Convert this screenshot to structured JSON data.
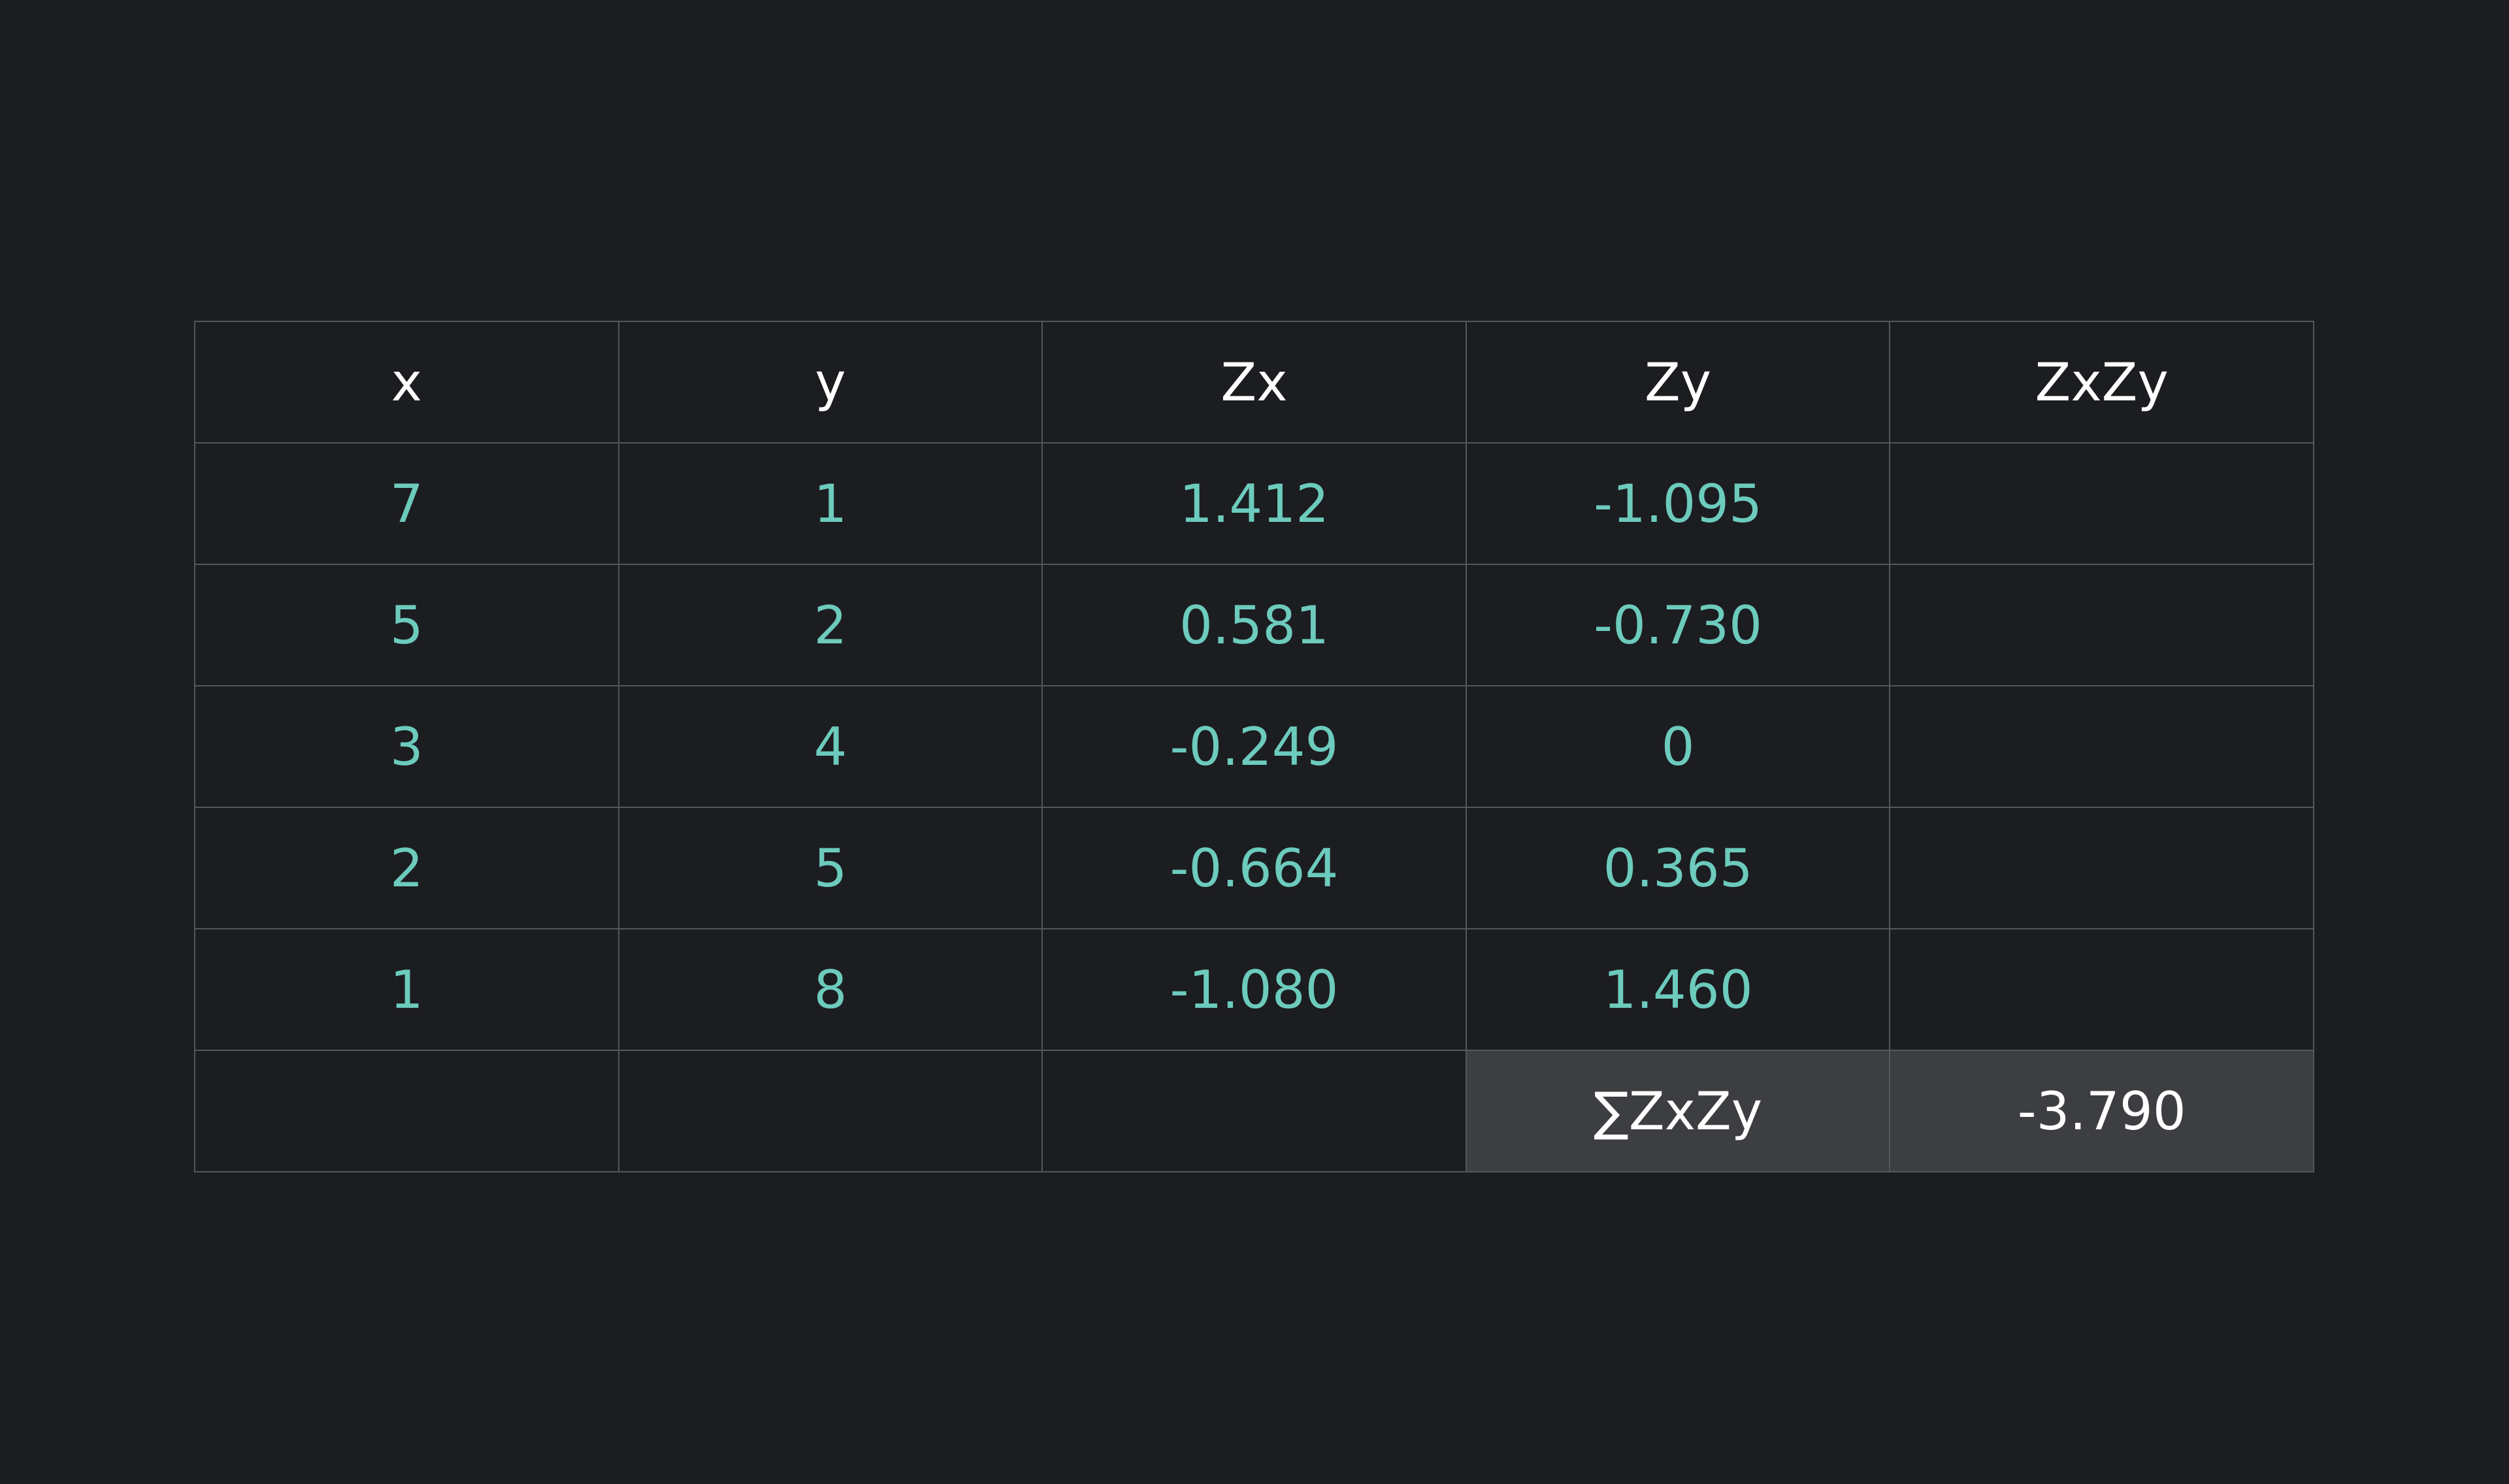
{
  "table": {
    "headers": [
      "x",
      "y",
      "Zx",
      "Zy",
      "ZxZy"
    ],
    "rows": [
      [
        "7",
        "1",
        "1.412",
        "-1.095",
        ""
      ],
      [
        "5",
        "2",
        "0.581",
        "-0.730",
        ""
      ],
      [
        "3",
        "4",
        "-0.249",
        "0",
        ""
      ],
      [
        "2",
        "5",
        "-0.664",
        "0.365",
        ""
      ],
      [
        "1",
        "8",
        "-1.080",
        "1.460",
        ""
      ]
    ],
    "summary": {
      "label": "∑ZxZy",
      "value": "-3.790"
    }
  },
  "colors": {
    "background": "#1c1d20",
    "grid": "#56575b",
    "value_text": "#6ccbbd",
    "header_text": "#ffffff",
    "summary_fill": "#3d3e41"
  }
}
